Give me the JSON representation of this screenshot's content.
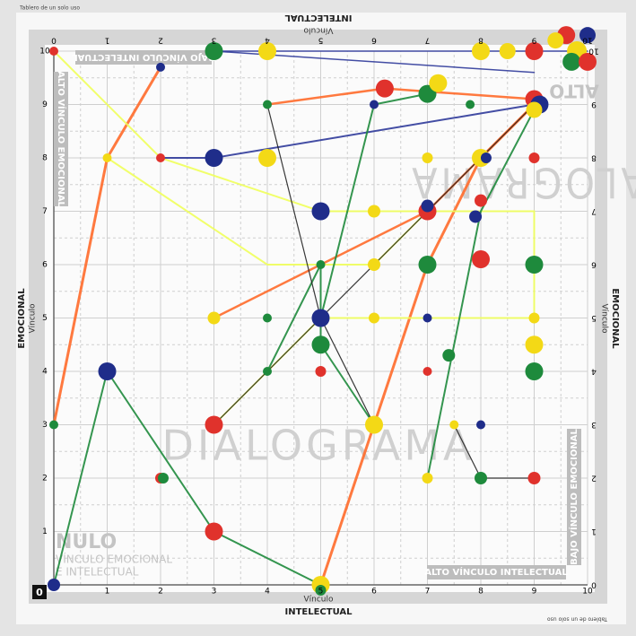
{
  "header": {
    "note": "Tablero de un solo uso",
    "axis_label": "Vínculo",
    "axis_title": "INTELECTUAL"
  },
  "axes": {
    "ticks": [
      0,
      1,
      2,
      3,
      4,
      5,
      6,
      7,
      8,
      9,
      10
    ],
    "bottom_label": "Vínculo",
    "bottom_title": "INTELECTUAL",
    "left_label": "Vínculo",
    "left_title": "EMOCIONAL",
    "right_label": "Vínculo",
    "right_title": "EMOCIONAL",
    "origin": "0"
  },
  "zones": {
    "top_left": "BAJO VÍNCULO INTELECTUAL",
    "left": "ALTO VÍNCULO EMOCIONAL",
    "top_right": "ALTO",
    "nulo_title": "NULO",
    "nulo_line1": "VÍNCULO EMOCIONAL",
    "nulo_line2": "E INTELECTUAL",
    "right": "BAJO VÍNCULO EMOCIONAL",
    "bottom_right": "ALTO VÍNCULO INTELECTUAL"
  },
  "watermarks": [
    "DIALOGRAMA",
    "DIALOGRAMA"
  ],
  "footer_note": "Tablero de un solo uso"
}
